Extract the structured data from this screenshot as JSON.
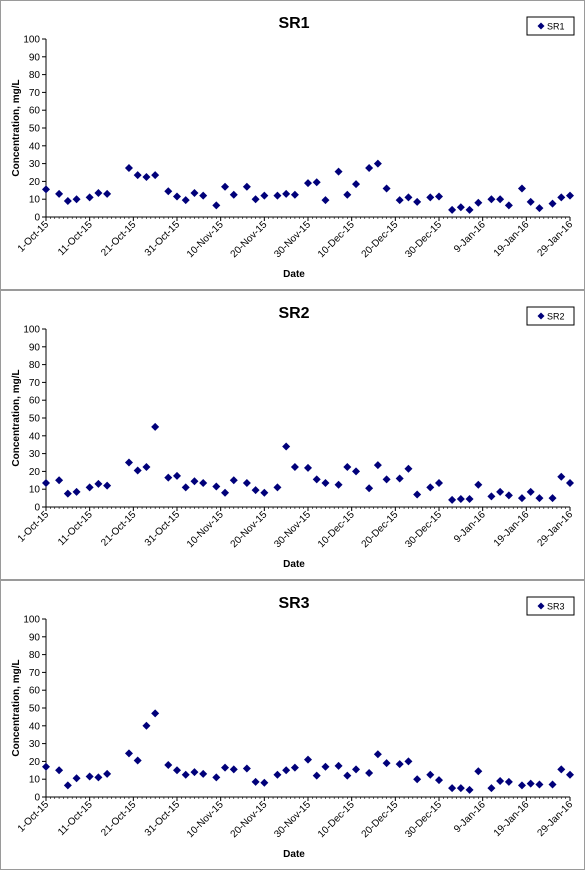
{
  "chart_data": [
    {
      "type": "scatter",
      "title": "SR1",
      "xlabel": "Date",
      "ylabel": "Concentration, mg/L",
      "ylim": [
        0,
        100
      ],
      "yticks": [
        "0",
        "10",
        "20",
        "30",
        "40",
        "50",
        "60",
        "70",
        "80",
        "90",
        "100"
      ],
      "xlim": [
        "2015-10-01",
        "2016-01-29"
      ],
      "xticks": [
        "1-Oct-15",
        "11-Oct-15",
        "21-Oct-15",
        "31-Oct-15",
        "10-Nov-15",
        "20-Nov-15",
        "30-Nov-15",
        "10-Dec-15",
        "20-Dec-15",
        "30-Dec-15",
        "9-Jan-16",
        "19-Jan-16",
        "29-Jan-16"
      ],
      "legend": "top-right",
      "grid": false,
      "marker_color": "#00007a",
      "series": [
        {
          "name": "SR1",
          "x": [
            "2015-10-01",
            "2015-10-04",
            "2015-10-06",
            "2015-10-08",
            "2015-10-11",
            "2015-10-13",
            "2015-10-15",
            "2015-10-20",
            "2015-10-22",
            "2015-10-24",
            "2015-10-26",
            "2015-10-29",
            "2015-10-31",
            "2015-11-02",
            "2015-11-04",
            "2015-11-06",
            "2015-11-09",
            "2015-11-11",
            "2015-11-13",
            "2015-11-16",
            "2015-11-18",
            "2015-11-20",
            "2015-11-23",
            "2015-11-25",
            "2015-11-27",
            "2015-11-30",
            "2015-12-02",
            "2015-12-04",
            "2015-12-07",
            "2015-12-09",
            "2015-12-11",
            "2015-12-14",
            "2015-12-16",
            "2015-12-18",
            "2015-12-21",
            "2015-12-23",
            "2015-12-25",
            "2015-12-28",
            "2015-12-30",
            "2016-01-02",
            "2016-01-04",
            "2016-01-06",
            "2016-01-08",
            "2016-01-11",
            "2016-01-13",
            "2016-01-15",
            "2016-01-18",
            "2016-01-20",
            "2016-01-22",
            "2016-01-25",
            "2016-01-27",
            "2016-01-29"
          ],
          "y": [
            15.5,
            13,
            9,
            10,
            11,
            13.5,
            13,
            27.5,
            23.5,
            22.5,
            23.5,
            14.5,
            11.5,
            9.5,
            13.5,
            12,
            6.5,
            17,
            12.5,
            17,
            10,
            12,
            12,
            13,
            12.5,
            19,
            19.5,
            9.5,
            25.5,
            12.5,
            18.5,
            27.5,
            30,
            16,
            9.5,
            11,
            8.5,
            11,
            11.5,
            4,
            5.5,
            4,
            8,
            10,
            10,
            6.5,
            16,
            8.5,
            5,
            7.5,
            11,
            12
          ]
        }
      ]
    },
    {
      "type": "scatter",
      "title": "SR2",
      "xlabel": "Date",
      "ylabel": "Concentration, mg/L",
      "ylim": [
        0,
        100
      ],
      "yticks": [
        "0",
        "10",
        "20",
        "30",
        "40",
        "50",
        "60",
        "70",
        "80",
        "90",
        "100"
      ],
      "xlim": [
        "2015-10-01",
        "2016-01-29"
      ],
      "xticks": [
        "1-Oct-15",
        "11-Oct-15",
        "21-Oct-15",
        "31-Oct-15",
        "10-Nov-15",
        "20-Nov-15",
        "30-Nov-15",
        "10-Dec-15",
        "20-Dec-15",
        "30-Dec-15",
        "9-Jan-16",
        "19-Jan-16",
        "29-Jan-16"
      ],
      "legend": "top-right",
      "grid": false,
      "marker_color": "#00007a",
      "series": [
        {
          "name": "SR2",
          "x": [
            "2015-10-01",
            "2015-10-04",
            "2015-10-06",
            "2015-10-08",
            "2015-10-11",
            "2015-10-13",
            "2015-10-15",
            "2015-10-20",
            "2015-10-22",
            "2015-10-24",
            "2015-10-26",
            "2015-10-29",
            "2015-10-31",
            "2015-11-02",
            "2015-11-04",
            "2015-11-06",
            "2015-11-09",
            "2015-11-11",
            "2015-11-13",
            "2015-11-16",
            "2015-11-18",
            "2015-11-20",
            "2015-11-23",
            "2015-11-25",
            "2015-11-27",
            "2015-11-30",
            "2015-12-02",
            "2015-12-04",
            "2015-12-07",
            "2015-12-09",
            "2015-12-11",
            "2015-12-14",
            "2015-12-16",
            "2015-12-18",
            "2015-12-21",
            "2015-12-23",
            "2015-12-25",
            "2015-12-28",
            "2015-12-30",
            "2016-01-02",
            "2016-01-04",
            "2016-01-06",
            "2016-01-08",
            "2016-01-11",
            "2016-01-13",
            "2016-01-15",
            "2016-01-18",
            "2016-01-20",
            "2016-01-22",
            "2016-01-25",
            "2016-01-27",
            "2016-01-29"
          ],
          "y": [
            13.5,
            15,
            7.5,
            8.5,
            11,
            13,
            12,
            25,
            20.5,
            22.5,
            45,
            16.5,
            17.5,
            11,
            14.5,
            13.5,
            11.5,
            8,
            15,
            13.5,
            9.5,
            8,
            11,
            34,
            22.5,
            22,
            15.5,
            13.5,
            12.5,
            22.5,
            20,
            10.5,
            23.5,
            15.5,
            16,
            21.5,
            7,
            11,
            13.5,
            4,
            4.5,
            4.5,
            12.5,
            6,
            8.5,
            6.5,
            5,
            8.5,
            5,
            5,
            17,
            13.5
          ]
        }
      ]
    },
    {
      "type": "scatter",
      "title": "SR3",
      "xlabel": "Date",
      "ylabel": "Concentration, mg/L",
      "ylim": [
        0,
        100
      ],
      "yticks": [
        "0",
        "10",
        "20",
        "30",
        "40",
        "50",
        "60",
        "70",
        "80",
        "90",
        "100"
      ],
      "xlim": [
        "2015-10-01",
        "2016-01-29"
      ],
      "xticks": [
        "1-Oct-15",
        "11-Oct-15",
        "21-Oct-15",
        "31-Oct-15",
        "10-Nov-15",
        "20-Nov-15",
        "30-Nov-15",
        "10-Dec-15",
        "20-Dec-15",
        "30-Dec-15",
        "9-Jan-16",
        "19-Jan-16",
        "29-Jan-16"
      ],
      "legend": "top-right",
      "grid": false,
      "marker_color": "#00007a",
      "series": [
        {
          "name": "SR3",
          "x": [
            "2015-10-01",
            "2015-10-04",
            "2015-10-06",
            "2015-10-08",
            "2015-10-11",
            "2015-10-13",
            "2015-10-15",
            "2015-10-20",
            "2015-10-22",
            "2015-10-24",
            "2015-10-26",
            "2015-10-29",
            "2015-10-31",
            "2015-11-02",
            "2015-11-04",
            "2015-11-06",
            "2015-11-09",
            "2015-11-11",
            "2015-11-13",
            "2015-11-16",
            "2015-11-18",
            "2015-11-20",
            "2015-11-23",
            "2015-11-25",
            "2015-11-27",
            "2015-11-30",
            "2015-12-02",
            "2015-12-04",
            "2015-12-07",
            "2015-12-09",
            "2015-12-11",
            "2015-12-14",
            "2015-12-16",
            "2015-12-18",
            "2015-12-21",
            "2015-12-23",
            "2015-12-25",
            "2015-12-28",
            "2015-12-30",
            "2016-01-02",
            "2016-01-04",
            "2016-01-06",
            "2016-01-08",
            "2016-01-11",
            "2016-01-13",
            "2016-01-15",
            "2016-01-18",
            "2016-01-20",
            "2016-01-22",
            "2016-01-25",
            "2016-01-27",
            "2016-01-29"
          ],
          "y": [
            17,
            15,
            6.5,
            10.5,
            11.5,
            11,
            13,
            24.5,
            20.5,
            40,
            47,
            18,
            15,
            12.5,
            14,
            13,
            11,
            16.5,
            15.5,
            16,
            8.5,
            8,
            12.5,
            15,
            16.5,
            21,
            12,
            17,
            17.5,
            12,
            15.5,
            13.5,
            24,
            19,
            18.5,
            20,
            10,
            12.5,
            9.5,
            5,
            5,
            4,
            14.5,
            5,
            9,
            8.5,
            6.5,
            7.5,
            7,
            7,
            15.5,
            12.5
          ]
        }
      ]
    }
  ]
}
